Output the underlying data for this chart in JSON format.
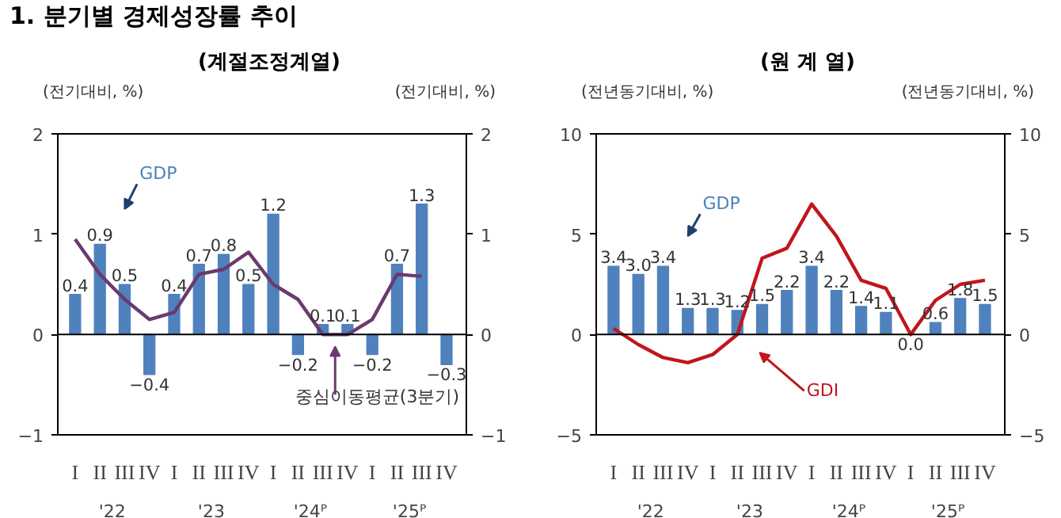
{
  "chart_data": [
    {
      "type": "bar",
      "title": "1. 분기별 경제성장률 추이",
      "subtitle": "(계절조정계열)",
      "ylabel": "(전기대비, %)",
      "y2label": "(전기대비, %)",
      "categories": [
        "I",
        "II",
        "III",
        "IV",
        "I",
        "II",
        "III",
        "IV",
        "I",
        "II",
        "III",
        "IV",
        "I",
        "II",
        "III",
        "IV"
      ],
      "series": [
        {
          "name": "GDP",
          "color": "#4f81bd",
          "values": [
            0.4,
            0.9,
            0.5,
            -0.4,
            0.4,
            0.7,
            0.8,
            0.5,
            1.2,
            -0.2,
            0.1,
            0.1,
            -0.2,
            0.7,
            1.3,
            -0.3
          ],
          "value_labels": [
            "0.4",
            "0.9",
            "0.5",
            "−0.4",
            "0.4",
            "0.7",
            "0.8",
            "0.5",
            "1.2",
            "−0.2",
            "0.1",
            "0.1",
            "−0.2",
            "0.7",
            "1.3",
            "−0.3"
          ]
        },
        {
          "name": "중심이동평균(3분기)",
          "type": "line",
          "color": "#6b3a6e",
          "values": [
            0.95,
            0.6,
            0.35,
            0.15,
            0.22,
            0.6,
            0.65,
            0.82,
            0.5,
            0.35,
            0.0,
            0.0,
            0.15,
            0.6,
            0.58,
            null
          ]
        }
      ],
      "annotations": [
        "'22",
        "'23",
        "'24ᴾ",
        "'25ᴾ"
      ],
      "ylim": [
        -1,
        2
      ],
      "yticks": [
        -1,
        0,
        1,
        2
      ],
      "y2lim": [
        -1,
        2
      ],
      "y2ticks": [
        -1,
        0,
        1,
        2
      ],
      "ref_lines": [
        {
          "axis": "y",
          "value": 0,
          "color": "#000000"
        }
      ],
      "grid": false
    },
    {
      "type": "bar",
      "title": "(원 계 열)",
      "ylabel": "(전년동기대비, %)",
      "y2label": "(전년동기대비, %)",
      "categories": [
        "I",
        "II",
        "III",
        "IV",
        "I",
        "II",
        "III",
        "IV",
        "I",
        "II",
        "III",
        "IV",
        "I",
        "II",
        "III",
        "IV"
      ],
      "series": [
        {
          "name": "GDP",
          "color": "#4f81bd",
          "values": [
            3.4,
            3.0,
            3.4,
            1.3,
            1.3,
            1.2,
            1.5,
            2.2,
            3.4,
            2.2,
            1.4,
            1.1,
            0.0,
            0.6,
            1.8,
            1.5
          ],
          "value_labels": [
            "3.4",
            "3.0",
            "3.4",
            "1.3",
            "1.3",
            "1.2",
            "1.5",
            "2.2",
            "3.4",
            "2.2",
            "1.4",
            "1.1",
            "0.0",
            "0.6",
            "1.8",
            "1.5"
          ]
        },
        {
          "name": "GDI",
          "type": "line",
          "color": "#c0161b",
          "values": [
            0.3,
            -0.5,
            -1.15,
            -1.4,
            -1.0,
            0.0,
            3.8,
            4.3,
            6.5,
            4.9,
            2.7,
            2.3,
            0.0,
            1.7,
            2.5,
            2.7
          ]
        }
      ],
      "annotations": [
        "'22",
        "'23",
        "'24ᴾ",
        "'25ᴾ"
      ],
      "ylim": [
        -5,
        10
      ],
      "yticks": [
        -5,
        0,
        5,
        10
      ],
      "y2lim": [
        -5,
        10
      ],
      "y2ticks": [
        -5,
        0,
        5,
        10
      ],
      "ref_lines": [
        {
          "axis": "y",
          "value": 0,
          "color": "#000000"
        }
      ],
      "grid": false
    }
  ]
}
